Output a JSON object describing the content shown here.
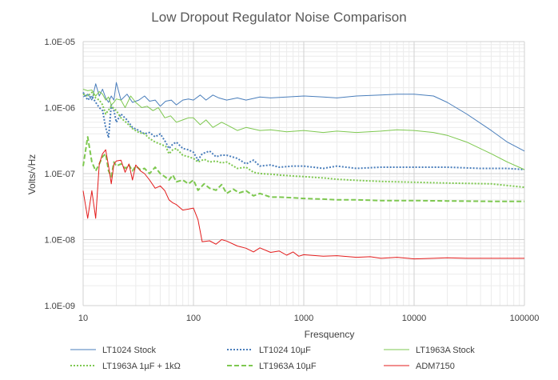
{
  "chart_data": {
    "type": "line",
    "title": "Low Dropout Regulator Noise Comparison",
    "xlabel": "Fresquency",
    "ylabel": "Volts/√Hz",
    "x_scale": "log",
    "y_scale": "log",
    "xlim": [
      10,
      100000
    ],
    "ylim": [
      1e-09,
      1e-05
    ],
    "x_ticks": [
      "10",
      "100",
      "1000",
      "10000",
      "100000"
    ],
    "y_ticks": [
      "1.0E-09",
      "1.0E-08",
      "1.0E-07",
      "1.0E-06",
      "1.0E-05"
    ],
    "grid": true,
    "legend_position": "bottom",
    "series": [
      {
        "name": "LT1024 Stock",
        "color": "#4a7ebb",
        "dash": "solid",
        "points": [
          [
            10,
            1.45e-06
          ],
          [
            11,
            1.6e-06
          ],
          [
            12,
            1.3e-06
          ],
          [
            13,
            2.3e-06
          ],
          [
            14,
            1.5e-06
          ],
          [
            15,
            1.9e-06
          ],
          [
            16,
            1.4e-06
          ],
          [
            17,
            1.2e-06
          ],
          [
            18,
            1.5e-06
          ],
          [
            19,
            1.3e-06
          ],
          [
            20,
            2.4e-06
          ],
          [
            22,
            1.3e-06
          ],
          [
            25,
            1.6e-06
          ],
          [
            28,
            1.2e-06
          ],
          [
            32,
            1.3e-06
          ],
          [
            36,
            1.5e-06
          ],
          [
            40,
            1.25e-06
          ],
          [
            45,
            1.3e-06
          ],
          [
            50,
            1.05e-06
          ],
          [
            56,
            1.25e-06
          ],
          [
            63,
            1.3e-06
          ],
          [
            70,
            1.1e-06
          ],
          [
            80,
            1.3e-06
          ],
          [
            90,
            1.35e-06
          ],
          [
            100,
            1.3e-06
          ],
          [
            115,
            1.55e-06
          ],
          [
            130,
            1.3e-06
          ],
          [
            150,
            1.55e-06
          ],
          [
            170,
            1.4e-06
          ],
          [
            200,
            1.3e-06
          ],
          [
            250,
            1.4e-06
          ],
          [
            300,
            1.3e-06
          ],
          [
            400,
            1.45e-06
          ],
          [
            500,
            1.4e-06
          ],
          [
            700,
            1.45e-06
          ],
          [
            1000,
            1.5e-06
          ],
          [
            1500,
            1.45e-06
          ],
          [
            2000,
            1.4e-06
          ],
          [
            3000,
            1.5e-06
          ],
          [
            5000,
            1.55e-06
          ],
          [
            7000,
            1.6e-06
          ],
          [
            10000,
            1.6e-06
          ],
          [
            15000,
            1.5e-06
          ],
          [
            20000,
            1.2e-06
          ],
          [
            30000,
            8e-07
          ],
          [
            50000,
            4.5e-07
          ],
          [
            70000,
            3e-07
          ],
          [
            100000,
            2.2e-07
          ]
        ]
      },
      {
        "name": "LT1024 10µF",
        "color": "#4a7ebb",
        "dash": "dotted",
        "points": [
          [
            10,
            1.7e-06
          ],
          [
            11,
            1.3e-06
          ],
          [
            12,
            1.5e-06
          ],
          [
            13,
            1.2e-06
          ],
          [
            14,
            1e-06
          ],
          [
            15,
            9e-07
          ],
          [
            16,
            5e-07
          ],
          [
            17,
            3.5e-07
          ],
          [
            18,
            1.1e-06
          ],
          [
            19,
            9e-07
          ],
          [
            20,
            6e-07
          ],
          [
            22,
            8e-07
          ],
          [
            25,
            6.5e-07
          ],
          [
            28,
            5e-07
          ],
          [
            32,
            4.5e-07
          ],
          [
            36,
            4e-07
          ],
          [
            40,
            4.2e-07
          ],
          [
            45,
            3.6e-07
          ],
          [
            50,
            4e-07
          ],
          [
            56,
            3e-07
          ],
          [
            60,
            2.4e-07
          ],
          [
            65,
            2.8e-07
          ],
          [
            70,
            3e-07
          ],
          [
            80,
            2.4e-07
          ],
          [
            90,
            2.3e-07
          ],
          [
            100,
            2.1e-07
          ],
          [
            110,
            1.6e-07
          ],
          [
            120,
            2e-07
          ],
          [
            140,
            2.2e-07
          ],
          [
            160,
            1.8e-07
          ],
          [
            180,
            1.9e-07
          ],
          [
            200,
            1.9e-07
          ],
          [
            250,
            1.7e-07
          ],
          [
            300,
            1.4e-07
          ],
          [
            350,
            1.6e-07
          ],
          [
            400,
            1.3e-07
          ],
          [
            500,
            1.35e-07
          ],
          [
            600,
            1.25e-07
          ],
          [
            800,
            1.3e-07
          ],
          [
            1000,
            1.3e-07
          ],
          [
            1500,
            1.2e-07
          ],
          [
            2000,
            1.3e-07
          ],
          [
            3000,
            1.2e-07
          ],
          [
            5000,
            1.25e-07
          ],
          [
            10000,
            1.25e-07
          ],
          [
            20000,
            1.25e-07
          ],
          [
            40000,
            1.2e-07
          ],
          [
            70000,
            1.2e-07
          ],
          [
            100000,
            1.15e-07
          ]
        ]
      },
      {
        "name": "LT1963A Stock",
        "color": "#7ec850",
        "dash": "solid",
        "points": [
          [
            10,
            1.9e-06
          ],
          [
            11,
            1.8e-06
          ],
          [
            12,
            1.85e-06
          ],
          [
            13,
            1.5e-06
          ],
          [
            14,
            1.75e-06
          ],
          [
            15,
            1.6e-06
          ],
          [
            16,
            1.3e-06
          ],
          [
            17,
            1.45e-06
          ],
          [
            18,
            1.1e-06
          ],
          [
            19,
            1.2e-06
          ],
          [
            20,
            1.35e-06
          ],
          [
            22,
            1.3e-06
          ],
          [
            24,
            1e-06
          ],
          [
            27,
            1.5e-06
          ],
          [
            30,
            1.2e-06
          ],
          [
            34,
            1e-06
          ],
          [
            38,
            1.05e-06
          ],
          [
            43,
            9e-07
          ],
          [
            48,
            1e-06
          ],
          [
            55,
            7e-07
          ],
          [
            62,
            7.5e-07
          ],
          [
            70,
            6e-07
          ],
          [
            80,
            6.5e-07
          ],
          [
            90,
            7e-07
          ],
          [
            100,
            7e-07
          ],
          [
            115,
            5.5e-07
          ],
          [
            130,
            6.5e-07
          ],
          [
            150,
            5e-07
          ],
          [
            180,
            6e-07
          ],
          [
            200,
            5.5e-07
          ],
          [
            250,
            4.5e-07
          ],
          [
            300,
            5e-07
          ],
          [
            400,
            4.5e-07
          ],
          [
            500,
            4.6e-07
          ],
          [
            700,
            4.3e-07
          ],
          [
            1000,
            4.5e-07
          ],
          [
            1500,
            4.2e-07
          ],
          [
            2000,
            4.4e-07
          ],
          [
            3000,
            4.2e-07
          ],
          [
            5000,
            4.4e-07
          ],
          [
            7000,
            4.6e-07
          ],
          [
            10000,
            4.5e-07
          ],
          [
            15000,
            4.2e-07
          ],
          [
            20000,
            3.8e-07
          ],
          [
            30000,
            3e-07
          ],
          [
            50000,
            2e-07
          ],
          [
            70000,
            1.5e-07
          ],
          [
            100000,
            1.15e-07
          ]
        ]
      },
      {
        "name": "LT1963A 1µF + 1kΩ",
        "color": "#7ec850",
        "dash": "dotted",
        "points": [
          [
            10,
            1.6e-06
          ],
          [
            11,
            1.5e-06
          ],
          [
            12,
            1.7e-06
          ],
          [
            13,
            1.4e-06
          ],
          [
            14,
            1.3e-06
          ],
          [
            15,
            1.1e-06
          ],
          [
            16,
            8e-07
          ],
          [
            18,
            1.05e-06
          ],
          [
            20,
            9e-07
          ],
          [
            22,
            7e-07
          ],
          [
            25,
            5.8e-07
          ],
          [
            28,
            4.8e-07
          ],
          [
            32,
            4.2e-07
          ],
          [
            36,
            4e-07
          ],
          [
            40,
            3.4e-07
          ],
          [
            45,
            3e-07
          ],
          [
            50,
            2.8e-07
          ],
          [
            56,
            2.6e-07
          ],
          [
            60,
            2e-07
          ],
          [
            65,
            2.3e-07
          ],
          [
            70,
            2.4e-07
          ],
          [
            80,
            1.9e-07
          ],
          [
            90,
            1.8e-07
          ],
          [
            100,
            1.7e-07
          ],
          [
            110,
            1.5e-07
          ],
          [
            125,
            1.65e-07
          ],
          [
            140,
            1.5e-07
          ],
          [
            160,
            1.55e-07
          ],
          [
            180,
            1.45e-07
          ],
          [
            200,
            1.5e-07
          ],
          [
            250,
            1.2e-07
          ],
          [
            300,
            1.25e-07
          ],
          [
            350,
            1.05e-07
          ],
          [
            400,
            1e-07
          ],
          [
            500,
            9.8e-08
          ],
          [
            600,
            9.5e-08
          ],
          [
            800,
            9.2e-08
          ],
          [
            1000,
            9e-08
          ],
          [
            1500,
            8.6e-08
          ],
          [
            2000,
            8.2e-08
          ],
          [
            3000,
            7.9e-08
          ],
          [
            5000,
            7.6e-08
          ],
          [
            10000,
            7.4e-08
          ],
          [
            20000,
            7.2e-08
          ],
          [
            50000,
            7e-08
          ],
          [
            100000,
            6.2e-08
          ]
        ]
      },
      {
        "name": "LT1963A 10µF",
        "color": "#7ec850",
        "dash": "dashed",
        "points": [
          [
            10,
            1.3e-07
          ],
          [
            11,
            3.6e-07
          ],
          [
            12,
            1.5e-07
          ],
          [
            13,
            1.1e-07
          ],
          [
            14,
            1.4e-07
          ],
          [
            15,
            1.8e-07
          ],
          [
            16,
            2e-07
          ],
          [
            17,
            1.1e-07
          ],
          [
            18,
            9e-08
          ],
          [
            19,
            1.5e-07
          ],
          [
            20,
            1.3e-07
          ],
          [
            22,
            1.4e-07
          ],
          [
            24,
            1.2e-07
          ],
          [
            26,
            1.35e-07
          ],
          [
            28,
            1.1e-07
          ],
          [
            30,
            1.3e-07
          ],
          [
            33,
            1.15e-07
          ],
          [
            36,
            1.2e-07
          ],
          [
            40,
            1e-07
          ],
          [
            45,
            1.25e-07
          ],
          [
            50,
            1e-07
          ],
          [
            55,
            9e-08
          ],
          [
            60,
            8e-08
          ],
          [
            65,
            9.5e-08
          ],
          [
            70,
            7.5e-08
          ],
          [
            80,
            8e-08
          ],
          [
            90,
            7e-08
          ],
          [
            100,
            8e-08
          ],
          [
            110,
            5.6e-08
          ],
          [
            125,
            7e-08
          ],
          [
            140,
            6e-08
          ],
          [
            160,
            5.6e-08
          ],
          [
            180,
            6.8e-08
          ],
          [
            200,
            5e-08
          ],
          [
            230,
            5.8e-08
          ],
          [
            260,
            5.1e-08
          ],
          [
            300,
            5.5e-08
          ],
          [
            350,
            4.6e-08
          ],
          [
            400,
            5e-08
          ],
          [
            500,
            4.4e-08
          ],
          [
            600,
            4.4e-08
          ],
          [
            800,
            4.3e-08
          ],
          [
            1000,
            4.2e-08
          ],
          [
            1500,
            4.1e-08
          ],
          [
            2000,
            4e-08
          ],
          [
            3000,
            4e-08
          ],
          [
            5000,
            3.9e-08
          ],
          [
            10000,
            3.9e-08
          ],
          [
            20000,
            3.85e-08
          ],
          [
            50000,
            3.8e-08
          ],
          [
            100000,
            3.8e-08
          ]
        ]
      },
      {
        "name": "ADM7150",
        "color": "#e31c1c",
        "dash": "solid",
        "points": [
          [
            10,
            5.5e-08
          ],
          [
            11,
            2.1e-08
          ],
          [
            12,
            5.5e-08
          ],
          [
            13,
            2.1e-08
          ],
          [
            14,
            1.4e-07
          ],
          [
            15,
            2e-07
          ],
          [
            16,
            2.3e-07
          ],
          [
            17,
            1.3e-07
          ],
          [
            18,
            7e-08
          ],
          [
            19,
            1.4e-07
          ],
          [
            20,
            1.55e-07
          ],
          [
            22,
            1.6e-07
          ],
          [
            24,
            1.05e-07
          ],
          [
            26,
            1.4e-07
          ],
          [
            28,
            8e-08
          ],
          [
            30,
            1.35e-07
          ],
          [
            33,
            1.1e-07
          ],
          [
            36,
            1e-07
          ],
          [
            40,
            8e-08
          ],
          [
            45,
            6e-08
          ],
          [
            50,
            6.5e-08
          ],
          [
            55,
            5.5e-08
          ],
          [
            60,
            4e-08
          ],
          [
            65,
            3.6e-08
          ],
          [
            70,
            3.4e-08
          ],
          [
            80,
            2.8e-08
          ],
          [
            90,
            2.9e-08
          ],
          [
            100,
            3e-08
          ],
          [
            110,
            2e-08
          ],
          [
            120,
            9.3e-09
          ],
          [
            140,
            9.6e-09
          ],
          [
            160,
            8.5e-09
          ],
          [
            180,
            1e-08
          ],
          [
            200,
            9.5e-09
          ],
          [
            250,
            8e-09
          ],
          [
            300,
            7.4e-09
          ],
          [
            350,
            6.5e-09
          ],
          [
            400,
            7.5e-09
          ],
          [
            500,
            6.4e-09
          ],
          [
            600,
            6.7e-09
          ],
          [
            700,
            5.8e-09
          ],
          [
            800,
            6.5e-09
          ],
          [
            900,
            5.6e-09
          ],
          [
            1000,
            5.9e-09
          ],
          [
            1500,
            5.6e-09
          ],
          [
            2000,
            5.7e-09
          ],
          [
            3000,
            5.4e-09
          ],
          [
            4000,
            5.5e-09
          ],
          [
            5000,
            5.2e-09
          ],
          [
            7000,
            5.4e-09
          ],
          [
            10000,
            5.1e-09
          ],
          [
            15000,
            5.2e-09
          ],
          [
            20000,
            5.3e-09
          ],
          [
            30000,
            5.2e-09
          ],
          [
            50000,
            5.2e-09
          ],
          [
            100000,
            5.2e-09
          ]
        ]
      }
    ]
  }
}
